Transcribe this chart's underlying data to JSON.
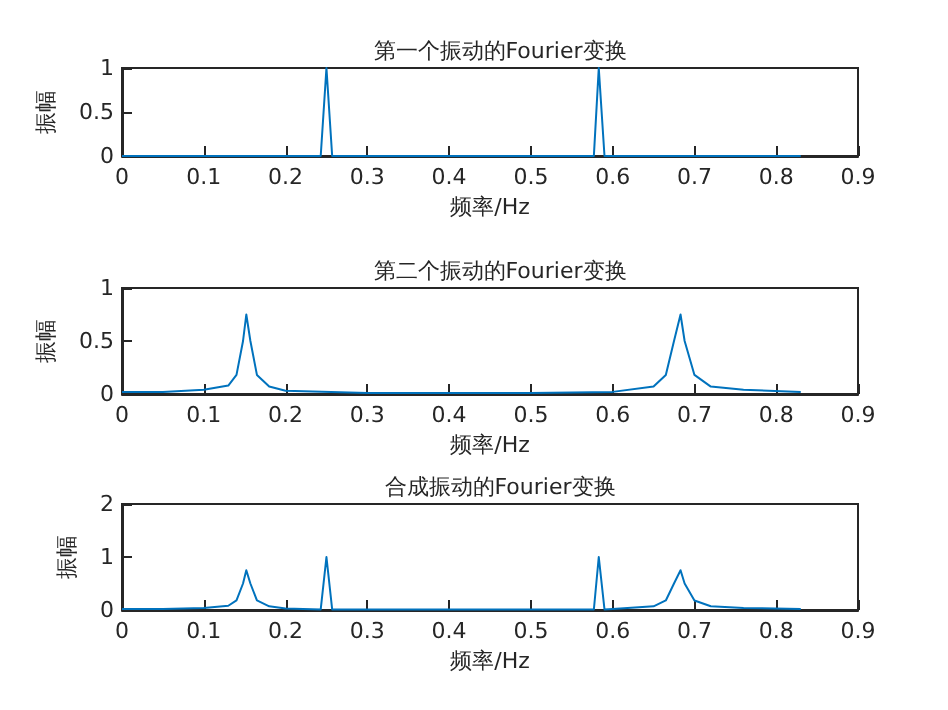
{
  "chart_data": [
    {
      "type": "line",
      "title": "第一个振动的Fourier变换",
      "xlabel": "频率/Hz",
      "ylabel": "振幅",
      "grid": false,
      "marker": "none",
      "line_style": "solid",
      "xlim": [
        0,
        0.9
      ],
      "xticks": [
        0,
        0.1,
        0.2,
        0.3,
        0.4,
        0.5,
        0.6,
        0.7,
        0.8,
        0.9
      ],
      "ylim": [
        0,
        1
      ],
      "yticks": [
        0,
        0.5,
        1
      ],
      "series": [
        {
          "color": "#0072bd",
          "x": [
            0,
            0.243,
            0.25,
            0.257,
            0.577,
            0.583,
            0.59,
            0.83
          ],
          "values": [
            0,
            0,
            1,
            0,
            0,
            1,
            0,
            0
          ]
        }
      ]
    },
    {
      "type": "line",
      "title": "第二个振动的Fourier变换",
      "xlabel": "频率/Hz",
      "ylabel": "振幅",
      "grid": false,
      "marker": "none",
      "line_style": "solid",
      "xlim": [
        0,
        0.9
      ],
      "xticks": [
        0,
        0.1,
        0.2,
        0.3,
        0.4,
        0.5,
        0.6,
        0.7,
        0.8,
        0.9
      ],
      "ylim": [
        0,
        1
      ],
      "yticks": [
        0,
        0.5,
        1
      ],
      "series": [
        {
          "color": "#0072bd",
          "x": [
            0,
            0.05,
            0.1,
            0.13,
            0.14,
            0.148,
            0.152,
            0.157,
            0.165,
            0.18,
            0.2,
            0.3,
            0.5,
            0.6,
            0.65,
            0.665,
            0.675,
            0.683,
            0.688,
            0.7,
            0.72,
            0.76,
            0.83
          ],
          "values": [
            0.02,
            0.02,
            0.04,
            0.08,
            0.18,
            0.5,
            0.75,
            0.5,
            0.18,
            0.07,
            0.03,
            0.01,
            0.01,
            0.02,
            0.07,
            0.18,
            0.5,
            0.75,
            0.5,
            0.18,
            0.07,
            0.04,
            0.02
          ]
        }
      ]
    },
    {
      "type": "line",
      "title": "合成振动的Fourier变换",
      "xlabel": "频率/Hz",
      "ylabel": "振幅",
      "grid": false,
      "marker": "none",
      "line_style": "solid",
      "xlim": [
        0,
        0.9
      ],
      "xticks": [
        0,
        0.1,
        0.2,
        0.3,
        0.4,
        0.5,
        0.6,
        0.7,
        0.8,
        0.9
      ],
      "ylim": [
        0,
        2
      ],
      "yticks": [
        0,
        1,
        2
      ],
      "series": [
        {
          "color": "#0072bd",
          "x": [
            0,
            0.05,
            0.1,
            0.13,
            0.14,
            0.148,
            0.152,
            0.157,
            0.165,
            0.18,
            0.2,
            0.243,
            0.25,
            0.257,
            0.3,
            0.5,
            0.577,
            0.583,
            0.59,
            0.6,
            0.65,
            0.665,
            0.675,
            0.683,
            0.688,
            0.7,
            0.72,
            0.76,
            0.83
          ],
          "values": [
            0.02,
            0.02,
            0.04,
            0.08,
            0.18,
            0.5,
            0.75,
            0.5,
            0.18,
            0.07,
            0.03,
            0.01,
            1,
            0.01,
            0.01,
            0.01,
            0.01,
            1,
            0.01,
            0.02,
            0.07,
            0.18,
            0.5,
            0.75,
            0.5,
            0.18,
            0.07,
            0.04,
            0.02
          ]
        }
      ]
    }
  ]
}
